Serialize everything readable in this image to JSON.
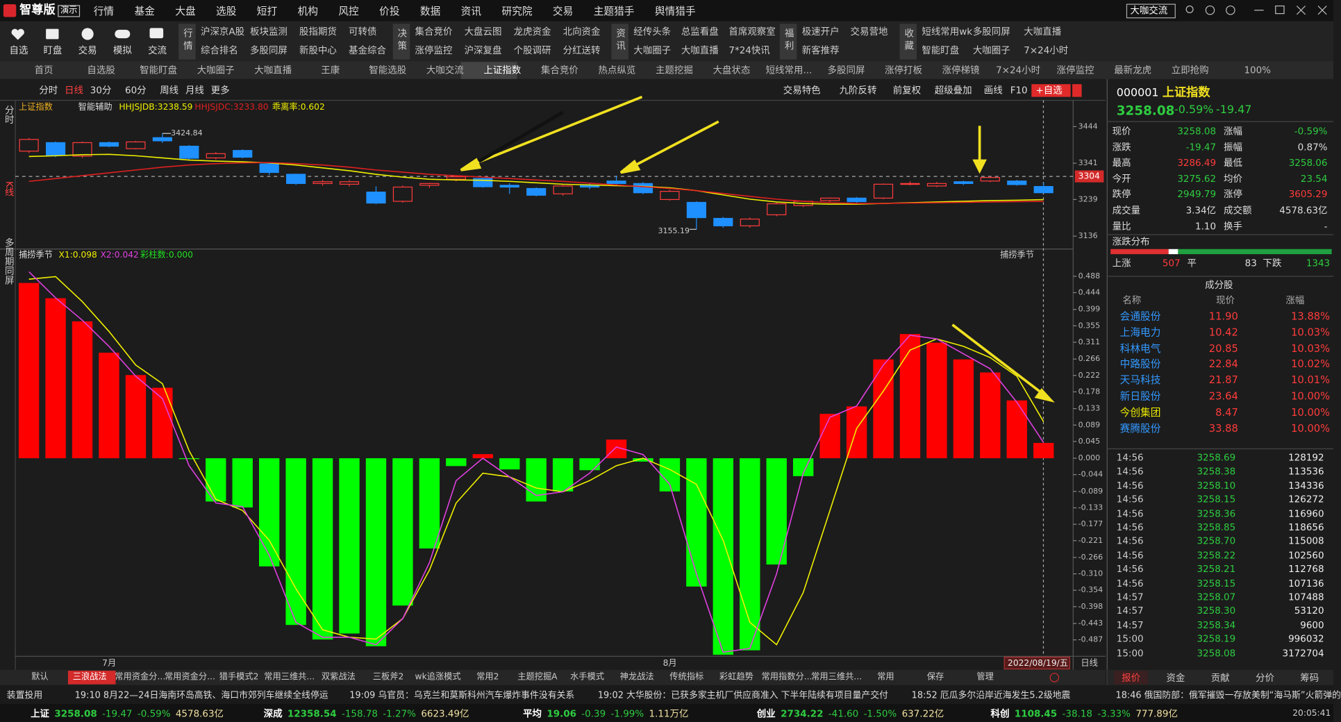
{
  "app": {
    "logo": "智尊版",
    "demo": "演示",
    "menu": [
      "行情",
      "基金",
      "大盘",
      "选股",
      "短打",
      "机构",
      "风控",
      "价投",
      "数据",
      "资讯",
      "研究院",
      "交易",
      "主题猎手",
      "舆情猎手"
    ],
    "right_button": "大咖交流"
  },
  "toolbar": {
    "icons": [
      "自选",
      "盯盘",
      "交易",
      "模拟",
      "交流"
    ],
    "groups": [
      {
        "title": "行情",
        "rows": [
          [
            "沪深京A股",
            "板块监测",
            "股指期货",
            "可转债"
          ],
          [
            "综合排名",
            "多股同屏",
            "新股中心",
            "基金综合"
          ]
        ]
      },
      {
        "title": "决策",
        "rows": [
          [
            "集合竞价",
            "大盘云图",
            "龙虎资金",
            "北向资金"
          ],
          [
            "涨停监控",
            "沪深复盘",
            "个股调研",
            "分红送转"
          ]
        ]
      },
      {
        "title": "资讯",
        "rows": [
          [
            "经传头条",
            "总监看盘",
            "首席观察室"
          ],
          [
            "大咖圈子",
            "大咖直播",
            "7*24快讯"
          ]
        ]
      },
      {
        "title": "福利",
        "rows": [
          [
            "极速开户",
            "交易营地"
          ],
          [
            "新客推荐"
          ]
        ]
      },
      {
        "title": "收藏",
        "rows": [
          [
            "短线常用wk",
            "多股同屏",
            "大咖直播"
          ],
          [
            "智能盯盘",
            "大咖圈子",
            "7×24小时"
          ]
        ]
      }
    ]
  },
  "tabs": {
    "items": [
      "首页",
      "自选股",
      "智能盯盘",
      "大咖圈子",
      "大咖直播",
      "王康",
      "智能选股",
      "大咖交流",
      "上证指数",
      "集合竞价",
      "热点纵览",
      "主题挖掘",
      "大盘状态",
      "短线常用...",
      "多股同屏",
      "涨停打板",
      "涨停梯镜",
      "7×24小时",
      "涨停监控",
      "最新龙虎",
      "立即抢购"
    ],
    "active": 8,
    "zoom": "100%"
  },
  "chart_toolbar": {
    "periods": [
      "分时",
      "日线",
      "30分",
      "60分",
      "周线",
      "月线",
      "更多"
    ],
    "active": 1,
    "tools": [
      "交易特色",
      "九阶反转",
      "前复权",
      "超级叠加",
      "画线",
      "F10"
    ],
    "add": "+自选"
  },
  "side_labels": [
    "分时",
    "K线",
    "多周期同屏"
  ],
  "chart_data": [
    {
      "type": "candlestick",
      "title": "上证指数",
      "indicators": [
        "智能辅助",
        "HHJSJDB:3238.59",
        "HHJSJDC:3233.80",
        "乖离率:0.602"
      ],
      "up_color": "#ff3b3b",
      "down_color": "#1e90ff",
      "candles": [
        {
          "open": 3375,
          "close": 3408,
          "high": 3412,
          "low": 3370
        },
        {
          "open": 3399,
          "close": 3363,
          "high": 3402,
          "low": 3358
        },
        {
          "open": 3361,
          "close": 3399,
          "high": 3402,
          "low": 3356
        },
        {
          "open": 3399,
          "close": 3389,
          "high": 3402,
          "low": 3386
        },
        {
          "open": 3382,
          "close": 3401,
          "high": 3404,
          "low": 3380
        },
        {
          "open": 3413,
          "close": 3404,
          "high": 3424.84,
          "low": 3398
        },
        {
          "open": 3389,
          "close": 3355,
          "high": 3392,
          "low": 3350
        },
        {
          "open": 3356,
          "close": 3368,
          "high": 3372,
          "low": 3352
        },
        {
          "open": 3377,
          "close": 3358,
          "high": 3380,
          "low": 3355
        },
        {
          "open": 3339,
          "close": 3315,
          "high": 3342,
          "low": 3308
        },
        {
          "open": 3310,
          "close": 3284,
          "high": 3312,
          "low": 3280
        },
        {
          "open": 3284,
          "close": 3289,
          "high": 3294,
          "low": 3278
        },
        {
          "open": 3282,
          "close": 3289,
          "high": 3293,
          "low": 3276
        },
        {
          "open": 3260,
          "close": 3229,
          "high": 3276,
          "low": 3226
        },
        {
          "open": 3234,
          "close": 3274,
          "high": 3278,
          "low": 3230
        },
        {
          "open": 3279,
          "close": 3284,
          "high": 3286,
          "low": 3272
        },
        {
          "open": 3296,
          "close": 3303,
          "high": 3306,
          "low": 3290
        },
        {
          "open": 3298,
          "close": 3275,
          "high": 3300,
          "low": 3272
        },
        {
          "open": 3279,
          "close": 3274,
          "high": 3285,
          "low": 3255
        },
        {
          "open": 3270,
          "close": 3251,
          "high": 3273,
          "low": 3248
        },
        {
          "open": 3255,
          "close": 3277,
          "high": 3280,
          "low": 3250
        },
        {
          "open": 3279,
          "close": 3274,
          "high": 3284,
          "low": 3268
        },
        {
          "open": 3291,
          "close": 3284,
          "high": 3306,
          "low": 3281
        },
        {
          "open": 3284,
          "close": 3258,
          "high": 3288,
          "low": 3254
        },
        {
          "open": 3239,
          "close": 3262,
          "high": 3266,
          "low": 3236
        },
        {
          "open": 3231,
          "close": 3188,
          "high": 3234,
          "low": 3155.19
        },
        {
          "open": 3186,
          "close": 3165,
          "high": 3190,
          "low": 3160
        },
        {
          "open": 3165,
          "close": 3184,
          "high": 3188,
          "low": 3160
        },
        {
          "open": 3196,
          "close": 3227,
          "high": 3230,
          "low": 3192
        },
        {
          "open": 3222,
          "close": 3234,
          "high": 3236,
          "low": 3218
        },
        {
          "open": 3236,
          "close": 3243,
          "high": 3245,
          "low": 3232
        },
        {
          "open": 3243,
          "close": 3233,
          "high": 3246,
          "low": 3230
        },
        {
          "open": 3243,
          "close": 3282,
          "high": 3284,
          "low": 3240
        },
        {
          "open": 3282,
          "close": 3284,
          "high": 3290,
          "low": 3279
        },
        {
          "open": 3277,
          "close": 3284,
          "high": 3288,
          "low": 3274
        },
        {
          "open": 3289,
          "close": 3284,
          "high": 3292,
          "low": 3280
        },
        {
          "open": 3291,
          "close": 3301,
          "high": 3304,
          "low": 3288
        },
        {
          "open": 3291,
          "close": 3281,
          "high": 3294,
          "low": 3278
        },
        {
          "open": 3275.62,
          "close": 3258.08,
          "high": 3286.49,
          "low": 3258.06
        }
      ],
      "series": [
        {
          "color": "#f0f000",
          "values": [
            3360,
            3362,
            3365,
            3366,
            3362,
            3356,
            3350,
            3347,
            3345,
            3342,
            3336,
            3328,
            3320,
            3310,
            3302,
            3296,
            3294,
            3293,
            3290,
            3286,
            3282,
            3280,
            3278,
            3276,
            3272,
            3264,
            3252,
            3240,
            3232,
            3228,
            3226,
            3226,
            3228,
            3230,
            3232,
            3234,
            3236,
            3237,
            3238.59
          ]
        },
        {
          "color": "#e02020",
          "values": [
            3290,
            3298,
            3306,
            3314,
            3322,
            3330,
            3336,
            3340,
            3342,
            3343,
            3340,
            3336,
            3330,
            3322,
            3316,
            3310,
            3306,
            3302,
            3298,
            3294,
            3290,
            3285,
            3280,
            3275,
            3270,
            3264,
            3256,
            3248,
            3240,
            3234,
            3230,
            3228,
            3228,
            3229,
            3230,
            3231,
            3232,
            3233,
            3233.8
          ]
        }
      ],
      "ylim": [
        3102,
        3518
      ],
      "yticks": [
        3444,
        3341,
        3239,
        3136
      ],
      "crosshair": 3304
    },
    {
      "type": "bar",
      "title": "捕捞季节",
      "legend": [
        "X1:0.098",
        "X2:0.042",
        "彩柱数:0.000"
      ],
      "corner_label": "捕捞季节",
      "categories": [
        null,
        null,
        null,
        "7月",
        null,
        null,
        null,
        null,
        null,
        null,
        null,
        null,
        null,
        null,
        null,
        null,
        null,
        null,
        null,
        null,
        null,
        null,
        null,
        null,
        "8月",
        null,
        null,
        null,
        null,
        null,
        null,
        null,
        null,
        null,
        null,
        null,
        null,
        null,
        null
      ],
      "up_color": "#ff0000",
      "down_color": "#00ff00",
      "values": [
        0.47,
        0.429,
        0.367,
        0.283,
        0.223,
        0.189,
        -0.002,
        -0.116,
        -0.132,
        -0.29,
        -0.447,
        -0.486,
        -0.47,
        -0.504,
        -0.395,
        -0.242,
        -0.021,
        0.011,
        -0.03,
        -0.116,
        -0.089,
        -0.032,
        0.05,
        -0.009,
        -0.089,
        -0.344,
        -0.527,
        -0.515,
        -0.285,
        -0.048,
        0.119,
        0.139,
        0.265,
        0.333,
        0.31,
        0.265,
        0.23,
        0.155,
        0.041
      ],
      "series": [
        {
          "color": "#f0f000",
          "values": [
            0.48,
            0.487,
            0.42,
            0.34,
            0.25,
            0.2,
            0.02,
            -0.11,
            -0.14,
            -0.22,
            -0.35,
            -0.46,
            -0.48,
            -0.485,
            -0.43,
            -0.3,
            -0.12,
            -0.04,
            -0.05,
            -0.08,
            -0.09,
            -0.06,
            -0.02,
            0.0,
            -0.03,
            -0.07,
            -0.22,
            -0.44,
            -0.5,
            -0.36,
            -0.14,
            0.08,
            0.18,
            0.29,
            0.32,
            0.3,
            0.27,
            0.22,
            0.098
          ]
        },
        {
          "color": "#e040e0",
          "values": [
            0.5,
            0.43,
            0.37,
            0.3,
            0.22,
            0.16,
            -0.02,
            -0.12,
            -0.13,
            -0.26,
            -0.44,
            -0.48,
            -0.48,
            -0.5,
            -0.43,
            -0.28,
            -0.06,
            0.0,
            -0.05,
            -0.1,
            -0.09,
            -0.04,
            0.03,
            0.01,
            -0.07,
            -0.31,
            -0.52,
            -0.51,
            -0.31,
            -0.04,
            0.11,
            0.14,
            0.25,
            0.33,
            0.32,
            0.28,
            0.24,
            0.15,
            0.042
          ]
        }
      ],
      "ylim": [
        -0.531,
        0.554
      ],
      "yticks": [
        0.488,
        0.444,
        0.399,
        0.355,
        0.311,
        0.266,
        0.222,
        0.178,
        0.133,
        0.089,
        0.045,
        {
          "value": 0,
          "label": "0.000"
        },
        -0.044,
        -0.089,
        -0.133,
        -0.177,
        -0.221,
        -0.266,
        {
          "value": -0.31,
          "label": "-0.310"
        },
        -0.354,
        -0.398,
        -0.443,
        -0.487
      ],
      "cursor_date": "2022/08/19/五",
      "period": "日线"
    }
  ],
  "bottom_tabs": {
    "items": [
      "默认",
      "三浪战法",
      "常用资金分...",
      "常用资金分...",
      "猎手模式2",
      "常用三维共...",
      "双紫战法",
      "三板斧2",
      "wk追涨模式",
      "常用2",
      "主题挖掘A",
      "水手模式",
      "神龙战法",
      "传统指标",
      "彩虹趋势",
      "常用指数分...",
      "常用三维共...",
      "常用",
      "保存",
      "管理"
    ],
    "active": 1
  },
  "news": [
    "装置投用",
    "19:10 8月22—24日海南环岛高铁、海口市郊列车继续全线停运",
    "19:09 乌官员：乌克兰和莫斯科州汽车爆炸事件没有关系",
    "19:02 大华股份：已获多家主机厂供应商准入 下半年陆续有项目量产交付",
    "18:52 厄瓜多尔沿岸近海发生5.2级地震",
    "18:46 俄国防部：俄军摧毁一存放美制“海马斯”火箭弹的"
  ],
  "status": {
    "indices": [
      {
        "name": "上证",
        "price": "3258.08",
        "change": "-19.47",
        "pct": "-0.59%",
        "amount": "4578.63亿"
      },
      {
        "name": "深成",
        "price": "12358.54",
        "change": "-158.78",
        "pct": "-1.27%",
        "amount": "6623.49亿"
      },
      {
        "name": "平均",
        "price": "19.06",
        "change": "-0.39",
        "pct": "-1.99%",
        "amount": "1.11万亿"
      },
      {
        "name": "创业",
        "price": "2734.22",
        "change": "-41.60",
        "pct": "-1.50%",
        "amount": "637.22亿"
      },
      {
        "name": "科创",
        "price": "1108.45",
        "change": "-38.18",
        "pct": "-3.33%",
        "amount": "777.89亿"
      }
    ],
    "time": "20:05:41"
  },
  "quote": {
    "code": "000001",
    "name": "上证指数",
    "price": "3258.08",
    "pct": "-0.59%",
    "change": "-19.47",
    "rows": [
      [
        {
          "label": "现价",
          "value": "3258.08",
          "color": "#2ecc40"
        },
        {
          "label": "涨幅",
          "value": "-0.59%",
          "color": "#2ecc40"
        }
      ],
      [
        {
          "label": "涨跌",
          "value": "-19.47",
          "color": "#2ecc40"
        },
        {
          "label": "振幅",
          "value": "0.87%",
          "color": "#dddddd"
        }
      ],
      [
        {
          "label": "最高",
          "value": "3286.49",
          "color": "#ff3b3b"
        },
        {
          "label": "最低",
          "value": "3258.06",
          "color": "#2ecc40"
        }
      ],
      [
        {
          "label": "今开",
          "value": "3275.62",
          "color": "#2ecc40"
        },
        {
          "label": "均价",
          "value": "23.54",
          "color": "#2ecc40"
        }
      ],
      [
        {
          "label": "跌停",
          "value": "2949.79",
          "color": "#2ecc40"
        },
        {
          "label": "涨停",
          "value": "3605.29",
          "color": "#ff3b3b"
        }
      ],
      [
        {
          "label": "成交量",
          "value": "3.34亿",
          "color": "#dddddd"
        },
        {
          "label": "成交额",
          "value": "4578.63亿",
          "color": "#dddddd"
        }
      ],
      [
        {
          "label": "量比",
          "value": "1.10",
          "color": "#dddddd"
        },
        {
          "label": "换手",
          "value": "-",
          "color": "#dddddd"
        }
      ]
    ]
  },
  "distribution": {
    "title": "涨跌分布",
    "up_label": "上涨",
    "up": 507,
    "flat_label": "平",
    "flat": 83,
    "down_label": "下跌",
    "down": 1343,
    "up_color": "#e03030",
    "flat_color": "#ffffff",
    "down_color": "#20a040"
  },
  "constituents": {
    "title": "成分股",
    "headers": [
      "名称",
      "现价",
      "涨幅"
    ],
    "rows": [
      {
        "name": "会通股份",
        "price": "11.90",
        "pct": "13.88%",
        "color": "#3399ff"
      },
      {
        "name": "上海电力",
        "price": "10.42",
        "pct": "10.03%",
        "color": "#3399ff"
      },
      {
        "name": "科林电气",
        "price": "20.85",
        "pct": "10.03%",
        "color": "#3399ff"
      },
      {
        "name": "中路股份",
        "price": "22.84",
        "pct": "10.02%",
        "color": "#3399ff"
      },
      {
        "name": "天马科技",
        "price": "21.87",
        "pct": "10.01%",
        "color": "#3399ff"
      },
      {
        "name": "新日股份",
        "price": "23.64",
        "pct": "10.00%",
        "color": "#3399ff"
      },
      {
        "name": "今创集团",
        "price": "8.47",
        "pct": "10.00%",
        "color": "#e8e800"
      },
      {
        "name": "赛腾股份",
        "price": "33.88",
        "pct": "10.00%",
        "color": "#3399ff"
      }
    ]
  },
  "ticks": {
    "rows": [
      [
        "14:56",
        "3258.69",
        "128192"
      ],
      [
        "14:56",
        "3258.38",
        "113536"
      ],
      [
        "14:56",
        "3258.10",
        "134336"
      ],
      [
        "14:56",
        "3258.15",
        "126272"
      ],
      [
        "14:56",
        "3258.36",
        "116960"
      ],
      [
        "14:56",
        "3258.85",
        "118656"
      ],
      [
        "14:56",
        "3258.70",
        "115008"
      ],
      [
        "14:56",
        "3258.22",
        "102560"
      ],
      [
        "14:56",
        "3258.21",
        "112768"
      ],
      [
        "14:56",
        "3258.15",
        "107136"
      ],
      [
        "14:57",
        "3258.07",
        "107488"
      ],
      [
        "14:57",
        "3258.30",
        "53120"
      ],
      [
        "14:57",
        "3258.34",
        "9600"
      ],
      [
        "15:00",
        "3258.19",
        "996032"
      ],
      [
        "15:00",
        "3258.08",
        "3172704"
      ]
    ]
  },
  "side_tabs": {
    "items": [
      "报价",
      "资金",
      "贡献",
      "分价",
      "筹码"
    ],
    "active": 0
  }
}
